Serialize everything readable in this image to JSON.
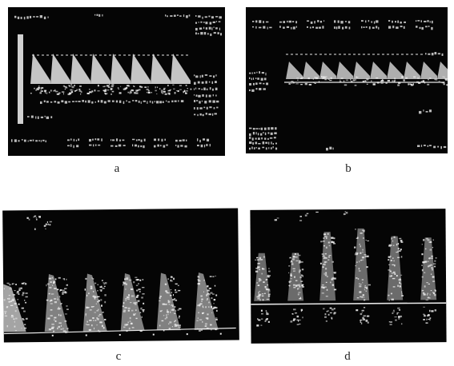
{
  "figure": {
    "panels": [
      {
        "id": "a",
        "caption": "a",
        "style": "sawtooth-doppler-with-text-overlay"
      },
      {
        "id": "b",
        "caption": "b",
        "style": "low-amplitude-doppler-with-text-overlay"
      },
      {
        "id": "c",
        "caption": "c",
        "style": "triangular-spectral-doppler"
      },
      {
        "id": "d",
        "caption": "d",
        "style": "bidirectional-spectral-doppler"
      }
    ],
    "colors": {
      "panel_background": "#050505",
      "signal": "#e8e8e8",
      "page_background": "#ffffff"
    }
  }
}
